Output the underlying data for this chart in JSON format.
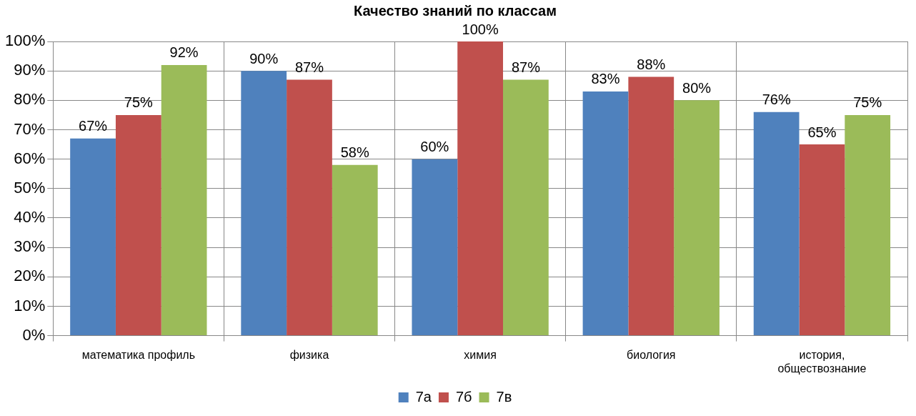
{
  "chart_data": {
    "type": "bar",
    "title": "Качество знаний по классам",
    "categories": [
      "математика профиль",
      "физика",
      "химия",
      "биология",
      "история, обществознание"
    ],
    "series": [
      {
        "name": "7а",
        "color": "#4f81bd",
        "values": [
          67,
          90,
          60,
          83,
          76
        ],
        "value_labels": [
          "67%",
          "90%",
          "60%",
          "83%",
          "76%"
        ]
      },
      {
        "name": "7б",
        "color": "#c0504d",
        "values": [
          75,
          87,
          100,
          88,
          65
        ],
        "value_labels": [
          "75%",
          "87%",
          "100%",
          "88%",
          "65%"
        ]
      },
      {
        "name": "7в",
        "color": "#9bbb59",
        "values": [
          92,
          58,
          87,
          80,
          75
        ],
        "value_labels": [
          "92%",
          "58%",
          "87%",
          "80%",
          "75%"
        ]
      }
    ],
    "ylim": [
      0,
      100
    ],
    "yticks": [
      {
        "value": 0,
        "label": "0%"
      },
      {
        "value": 10,
        "label": "10%"
      },
      {
        "value": 20,
        "label": "20%"
      },
      {
        "value": 30,
        "label": "30%"
      },
      {
        "value": 40,
        "label": "40%"
      },
      {
        "value": 50,
        "label": "50%"
      },
      {
        "value": 60,
        "label": "60%"
      },
      {
        "value": 70,
        "label": "70%"
      },
      {
        "value": 80,
        "label": "80%"
      },
      {
        "value": 90,
        "label": "90%"
      },
      {
        "value": 100,
        "label": "100%"
      }
    ],
    "grid": true,
    "legend": "bottom"
  }
}
